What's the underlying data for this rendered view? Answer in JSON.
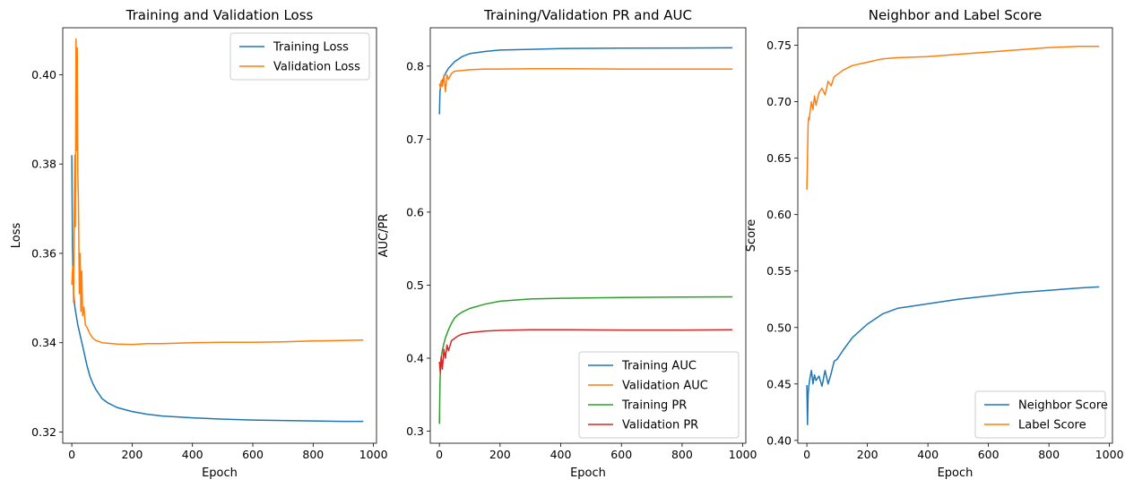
{
  "chart_data": [
    {
      "type": "line",
      "title": "Training and Validation Loss",
      "xlabel": "Epoch",
      "ylabel": "Loss",
      "xlim": [
        -30,
        1010
      ],
      "ylim": [
        0.3175,
        0.4105
      ],
      "xticks": [
        0,
        200,
        400,
        600,
        800,
        1000
      ],
      "yticks": [
        0.32,
        0.34,
        0.36,
        0.38,
        0.4
      ],
      "ytick_labels": [
        "0.32",
        "0.34",
        "0.36",
        "0.38",
        "0.40"
      ],
      "legend": "top-right",
      "series": [
        {
          "name": "Training Loss",
          "color": "#1f77b4",
          "x": [
            0,
            2,
            5,
            10,
            15,
            20,
            30,
            40,
            50,
            60,
            70,
            80,
            100,
            120,
            150,
            200,
            250,
            300,
            400,
            500,
            600,
            700,
            800,
            900,
            966
          ],
          "y": [
            0.382,
            0.362,
            0.352,
            0.348,
            0.346,
            0.344,
            0.341,
            0.338,
            0.335,
            0.3325,
            0.3308,
            0.3295,
            0.3275,
            0.3265,
            0.3255,
            0.3246,
            0.324,
            0.3236,
            0.3232,
            0.3229,
            0.3227,
            0.3226,
            0.3225,
            0.3224,
            0.3224
          ]
        },
        {
          "name": "Validation Loss",
          "color": "#ff7f0e",
          "x": [
            0,
            3,
            6,
            9,
            10,
            12,
            14,
            16,
            18,
            20,
            22,
            25,
            28,
            30,
            33,
            36,
            40,
            45,
            50,
            60,
            70,
            80,
            100,
            150,
            200,
            250,
            300,
            400,
            500,
            600,
            700,
            800,
            900,
            966
          ],
          "y": [
            0.353,
            0.357,
            0.349,
            0.375,
            0.382,
            0.366,
            0.408,
            0.383,
            0.406,
            0.378,
            0.372,
            0.351,
            0.36,
            0.347,
            0.356,
            0.346,
            0.348,
            0.344,
            0.3435,
            0.342,
            0.341,
            0.3405,
            0.34,
            0.3397,
            0.3396,
            0.3398,
            0.3398,
            0.34,
            0.3401,
            0.3401,
            0.3402,
            0.3404,
            0.3405,
            0.3406
          ]
        }
      ]
    },
    {
      "type": "line",
      "title": "Training/Validation PR and AUC",
      "xlabel": "Epoch",
      "ylabel": "AUC/PR",
      "xlim": [
        -30,
        1010
      ],
      "ylim": [
        0.2835,
        0.8525
      ],
      "xticks": [
        0,
        200,
        400,
        600,
        800,
        1000
      ],
      "yticks": [
        0.3,
        0.4,
        0.5,
        0.6,
        0.7,
        0.8
      ],
      "ytick_labels": [
        "0.3",
        "0.4",
        "0.5",
        "0.6",
        "0.7",
        "0.8"
      ],
      "legend": "bottom-right",
      "series": [
        {
          "name": "Training AUC",
          "color": "#1f77b4",
          "x": [
            0,
            2,
            4,
            6,
            10,
            20,
            30,
            50,
            75,
            100,
            150,
            200,
            300,
            400,
            600,
            800,
            966
          ],
          "y": [
            0.734,
            0.765,
            0.772,
            0.775,
            0.78,
            0.79,
            0.797,
            0.806,
            0.813,
            0.817,
            0.82,
            0.822,
            0.823,
            0.824,
            0.8245,
            0.8248,
            0.825
          ]
        },
        {
          "name": "Validation AUC",
          "color": "#ff7f0e",
          "x": [
            0,
            3,
            6,
            10,
            15,
            20,
            25,
            30,
            40,
            50,
            75,
            100,
            150,
            200,
            300,
            400,
            600,
            800,
            966
          ],
          "y": [
            0.776,
            0.77,
            0.78,
            0.772,
            0.787,
            0.765,
            0.788,
            0.782,
            0.79,
            0.793,
            0.794,
            0.795,
            0.796,
            0.796,
            0.7965,
            0.7965,
            0.796,
            0.796,
            0.796
          ]
        },
        {
          "name": "Training PR",
          "color": "#2ca02c",
          "x": [
            0,
            2,
            4,
            6,
            10,
            15,
            20,
            30,
            40,
            50,
            60,
            75,
            100,
            150,
            200,
            300,
            400,
            600,
            800,
            966
          ],
          "y": [
            0.31,
            0.365,
            0.39,
            0.401,
            0.411,
            0.42,
            0.428,
            0.439,
            0.448,
            0.455,
            0.459,
            0.463,
            0.468,
            0.474,
            0.478,
            0.481,
            0.482,
            0.483,
            0.4838,
            0.484
          ]
        },
        {
          "name": "Validation PR",
          "color": "#d62728",
          "x": [
            0,
            3,
            6,
            10,
            15,
            20,
            25,
            30,
            40,
            50,
            60,
            75,
            100,
            150,
            200,
            300,
            400,
            600,
            800,
            966
          ],
          "y": [
            0.395,
            0.38,
            0.402,
            0.385,
            0.412,
            0.4,
            0.418,
            0.41,
            0.424,
            0.427,
            0.43,
            0.433,
            0.435,
            0.437,
            0.438,
            0.439,
            0.439,
            0.4385,
            0.4385,
            0.439
          ]
        }
      ]
    },
    {
      "type": "line",
      "title": "Neighbor and Label Score",
      "xlabel": "Epoch",
      "ylabel": "Score",
      "xlim": [
        -30,
        1010
      ],
      "ylim": [
        0.3975,
        0.7655
      ],
      "xticks": [
        0,
        200,
        400,
        600,
        800,
        1000
      ],
      "yticks": [
        0.4,
        0.45,
        0.5,
        0.55,
        0.6,
        0.65,
        0.7,
        0.75
      ],
      "ytick_labels": [
        "0.40",
        "0.45",
        "0.50",
        "0.55",
        "0.60",
        "0.65",
        "0.70",
        "0.75"
      ],
      "legend": "bottom-right",
      "series": [
        {
          "name": "Neighbor Score",
          "color": "#1f77b4",
          "x": [
            0,
            2,
            4,
            6,
            10,
            15,
            20,
            25,
            30,
            40,
            50,
            60,
            70,
            80,
            90,
            100,
            120,
            150,
            200,
            250,
            300,
            400,
            500,
            600,
            700,
            800,
            900,
            966
          ],
          "y": [
            0.449,
            0.414,
            0.44,
            0.447,
            0.455,
            0.462,
            0.45,
            0.458,
            0.453,
            0.457,
            0.448,
            0.462,
            0.45,
            0.459,
            0.47,
            0.472,
            0.48,
            0.491,
            0.503,
            0.512,
            0.517,
            0.521,
            0.525,
            0.528,
            0.531,
            0.533,
            0.535,
            0.536
          ]
        },
        {
          "name": "Label Score",
          "color": "#ff7f0e",
          "x": [
            0,
            2,
            4,
            6,
            8,
            10,
            15,
            20,
            25,
            30,
            40,
            50,
            60,
            70,
            80,
            90,
            100,
            120,
            150,
            200,
            250,
            300,
            400,
            500,
            600,
            700,
            800,
            900,
            966
          ],
          "y": [
            0.622,
            0.65,
            0.68,
            0.686,
            0.684,
            0.69,
            0.7,
            0.693,
            0.705,
            0.697,
            0.708,
            0.712,
            0.706,
            0.718,
            0.714,
            0.722,
            0.724,
            0.728,
            0.732,
            0.735,
            0.738,
            0.739,
            0.74,
            0.742,
            0.744,
            0.746,
            0.748,
            0.749,
            0.749
          ]
        }
      ]
    }
  ]
}
